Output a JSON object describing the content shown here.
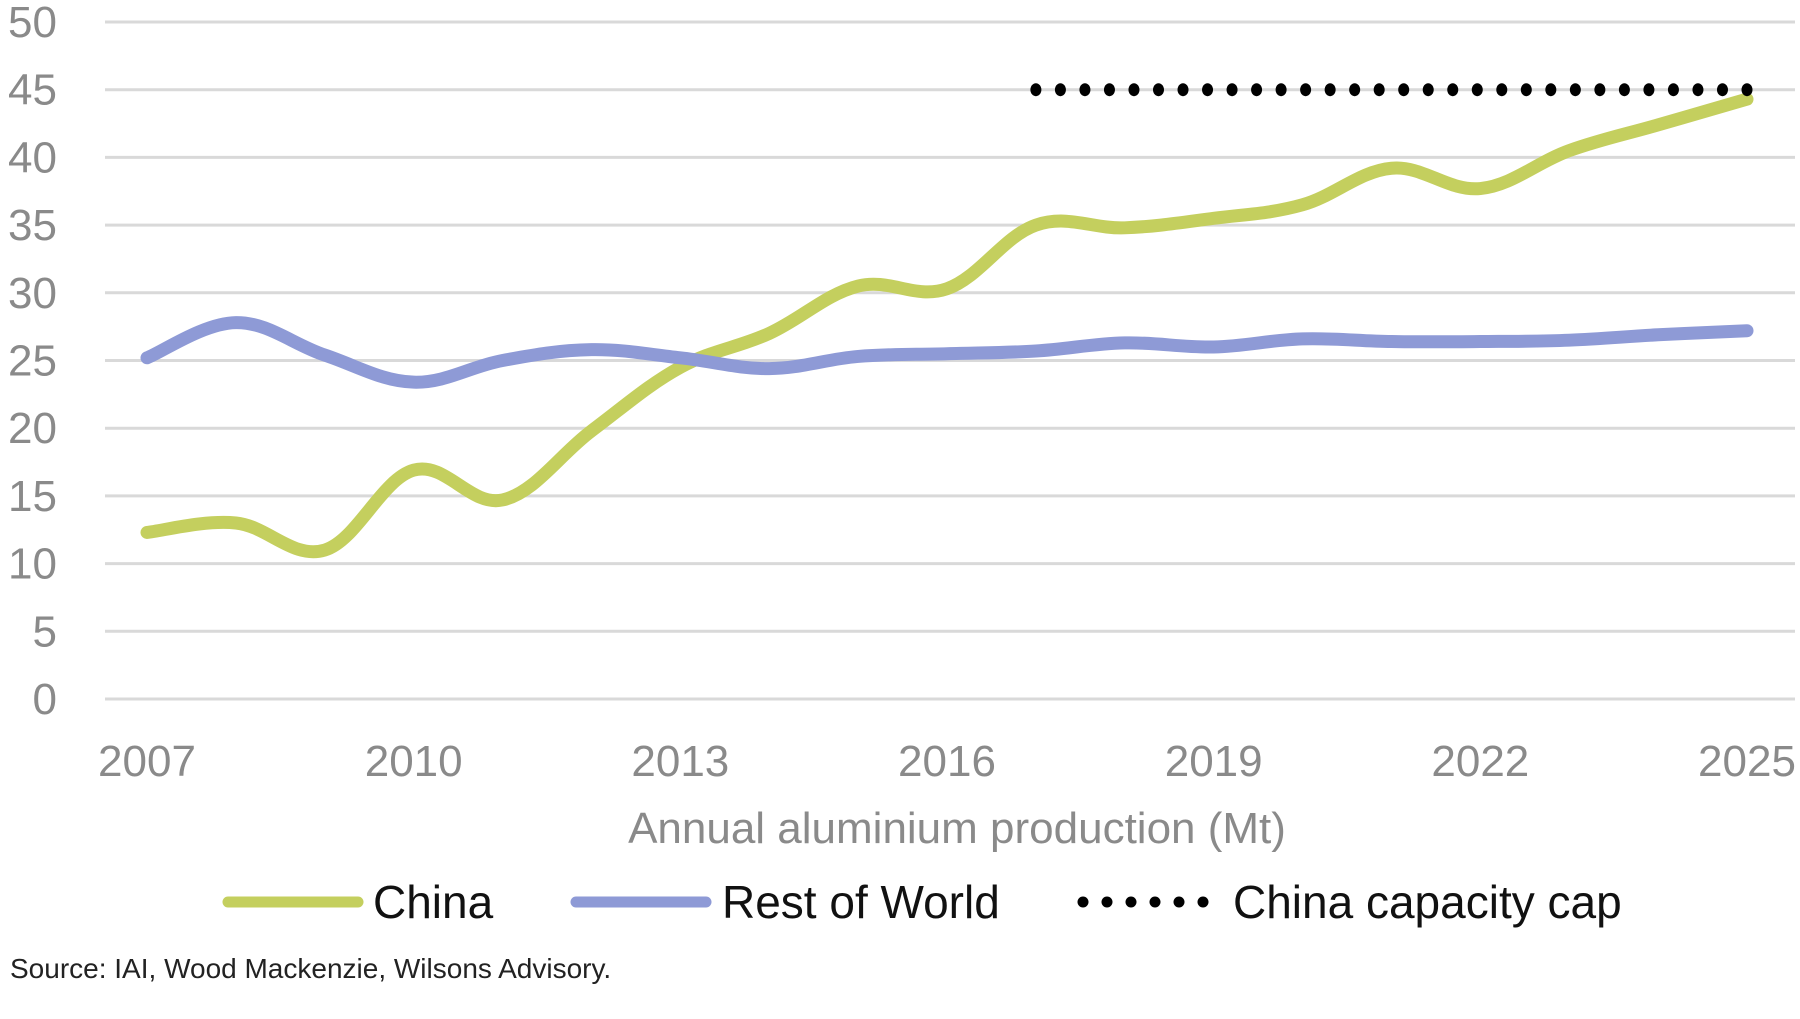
{
  "chart_data": {
    "type": "line",
    "title": "",
    "xlabel": "Annual aluminium production (Mt)",
    "ylabel": "",
    "x": [
      2007,
      2008,
      2009,
      2010,
      2011,
      2012,
      2013,
      2014,
      2015,
      2016,
      2017,
      2018,
      2019,
      2020,
      2021,
      2022,
      2023,
      2024,
      2025
    ],
    "xticks": [
      "2007",
      "2010",
      "2013",
      "2016",
      "2019",
      "2022",
      "2025"
    ],
    "xtick_values": [
      2007,
      2010,
      2013,
      2016,
      2019,
      2022,
      2025
    ],
    "yticks": [
      "0",
      "5",
      "10",
      "15",
      "20",
      "25",
      "30",
      "35",
      "40",
      "45",
      "50"
    ],
    "ylim": [
      0,
      50
    ],
    "xlim": [
      2007,
      2025
    ],
    "grid": "horizontal",
    "legend_position": "bottom",
    "series": [
      {
        "name": "China",
        "color": "#c4cf5e",
        "style": "solid-smooth",
        "values": [
          12.3,
          13.0,
          11.0,
          16.9,
          14.7,
          19.8,
          24.5,
          27.0,
          30.5,
          30.3,
          35.0,
          34.8,
          35.5,
          36.5,
          39.2,
          37.7,
          40.5,
          42.4,
          44.3
        ]
      },
      {
        "name": "Rest of World",
        "color": "#8e9ad6",
        "style": "solid-smooth",
        "values": [
          25.2,
          27.8,
          25.4,
          23.4,
          25.0,
          25.8,
          25.2,
          24.4,
          25.3,
          25.5,
          25.7,
          26.3,
          26.0,
          26.6,
          26.4,
          26.4,
          26.5,
          26.9,
          27.2
        ]
      },
      {
        "name": "China capacity cap",
        "color": "#000000",
        "style": "dotted",
        "x": [
          2017,
          2025
        ],
        "values": [
          45,
          45
        ]
      }
    ],
    "source": "Source: IAI, Wood Mackenzie, Wilsons Advisory."
  }
}
